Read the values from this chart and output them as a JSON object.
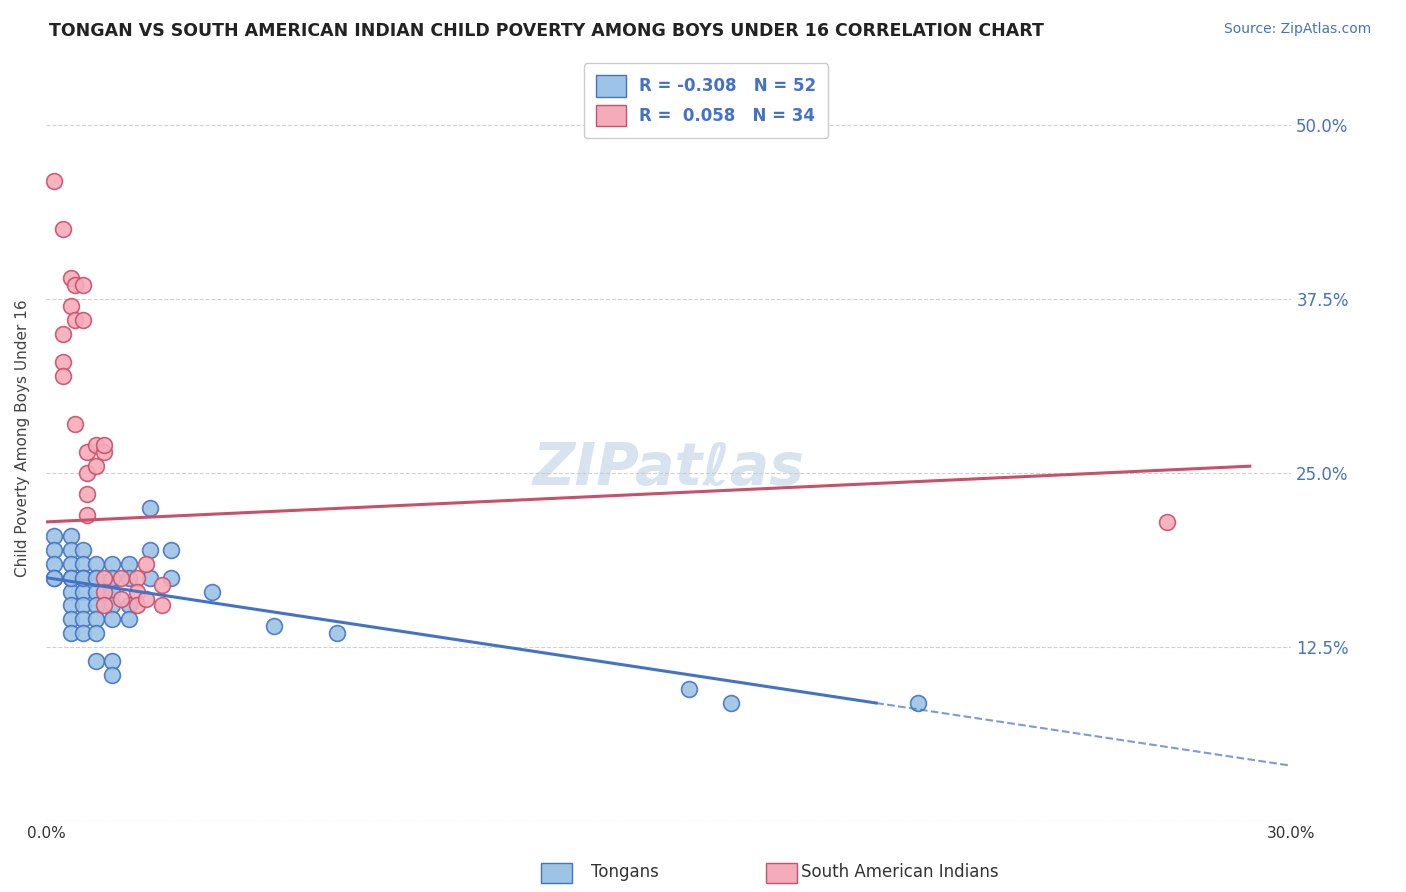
{
  "title": "TONGAN VS SOUTH AMERICAN INDIAN CHILD POVERTY AMONG BOYS UNDER 16 CORRELATION CHART",
  "source": "Source: ZipAtlas.com",
  "ylabel": "Child Poverty Among Boys Under 16",
  "xlim": [
    0.0,
    0.3
  ],
  "ylim": [
    0.0,
    0.55
  ],
  "xtick_positions": [
    0.0,
    0.3
  ],
  "xtick_labels": [
    "0.0%",
    "30.0%"
  ],
  "ytick_positions": [
    0.0,
    0.125,
    0.25,
    0.375,
    0.5
  ],
  "ytick_labels": [
    "",
    "12.5%",
    "25.0%",
    "37.5%",
    "50.0%"
  ],
  "grid_color": "#d0d0d0",
  "tongan_color": "#4472C4",
  "tongan_fill": "#9DC3E6",
  "sai_color": "#C9506A",
  "sai_fill": "#F4ACBA",
  "tongan_line_solid_end": 0.2,
  "tongan_line_end": 0.3,
  "sai_line_end": 0.29,
  "tongan_line_start_y": 0.175,
  "tongan_line_end_y": 0.04,
  "sai_line_start_y": 0.215,
  "sai_line_end_y": 0.255,
  "tongan_points": [
    [
      0.002,
      0.205
    ],
    [
      0.002,
      0.195
    ],
    [
      0.002,
      0.185
    ],
    [
      0.002,
      0.175
    ],
    [
      0.006,
      0.205
    ],
    [
      0.006,
      0.195
    ],
    [
      0.006,
      0.185
    ],
    [
      0.006,
      0.175
    ],
    [
      0.006,
      0.165
    ],
    [
      0.006,
      0.155
    ],
    [
      0.006,
      0.145
    ],
    [
      0.006,
      0.135
    ],
    [
      0.009,
      0.195
    ],
    [
      0.009,
      0.185
    ],
    [
      0.009,
      0.175
    ],
    [
      0.009,
      0.165
    ],
    [
      0.009,
      0.155
    ],
    [
      0.009,
      0.145
    ],
    [
      0.009,
      0.135
    ],
    [
      0.012,
      0.185
    ],
    [
      0.012,
      0.175
    ],
    [
      0.012,
      0.165
    ],
    [
      0.012,
      0.155
    ],
    [
      0.012,
      0.145
    ],
    [
      0.012,
      0.135
    ],
    [
      0.012,
      0.115
    ],
    [
      0.016,
      0.185
    ],
    [
      0.016,
      0.165
    ],
    [
      0.016,
      0.155
    ],
    [
      0.016,
      0.145
    ],
    [
      0.016,
      0.115
    ],
    [
      0.016,
      0.105
    ],
    [
      0.02,
      0.185
    ],
    [
      0.02,
      0.175
    ],
    [
      0.02,
      0.155
    ],
    [
      0.02,
      0.145
    ],
    [
      0.025,
      0.225
    ],
    [
      0.025,
      0.195
    ],
    [
      0.025,
      0.175
    ],
    [
      0.03,
      0.195
    ],
    [
      0.03,
      0.175
    ],
    [
      0.04,
      0.165
    ],
    [
      0.055,
      0.14
    ],
    [
      0.07,
      0.135
    ],
    [
      0.155,
      0.095
    ],
    [
      0.165,
      0.085
    ],
    [
      0.21,
      0.085
    ],
    [
      0.002,
      0.175
    ],
    [
      0.006,
      0.175
    ],
    [
      0.009,
      0.175
    ],
    [
      0.012,
      0.175
    ],
    [
      0.016,
      0.175
    ]
  ],
  "sai_points": [
    [
      0.002,
      0.46
    ],
    [
      0.004,
      0.425
    ],
    [
      0.004,
      0.35
    ],
    [
      0.004,
      0.33
    ],
    [
      0.004,
      0.32
    ],
    [
      0.006,
      0.39
    ],
    [
      0.006,
      0.37
    ],
    [
      0.007,
      0.385
    ],
    [
      0.007,
      0.36
    ],
    [
      0.007,
      0.285
    ],
    [
      0.009,
      0.385
    ],
    [
      0.009,
      0.36
    ],
    [
      0.01,
      0.265
    ],
    [
      0.01,
      0.25
    ],
    [
      0.01,
      0.235
    ],
    [
      0.01,
      0.22
    ],
    [
      0.012,
      0.27
    ],
    [
      0.012,
      0.255
    ],
    [
      0.014,
      0.265
    ],
    [
      0.014,
      0.175
    ],
    [
      0.014,
      0.165
    ],
    [
      0.014,
      0.155
    ],
    [
      0.018,
      0.175
    ],
    [
      0.018,
      0.16
    ],
    [
      0.022,
      0.175
    ],
    [
      0.022,
      0.165
    ],
    [
      0.022,
      0.155
    ],
    [
      0.024,
      0.185
    ],
    [
      0.024,
      0.16
    ],
    [
      0.028,
      0.17
    ],
    [
      0.028,
      0.155
    ],
    [
      0.014,
      0.27
    ],
    [
      0.27,
      0.215
    ]
  ]
}
